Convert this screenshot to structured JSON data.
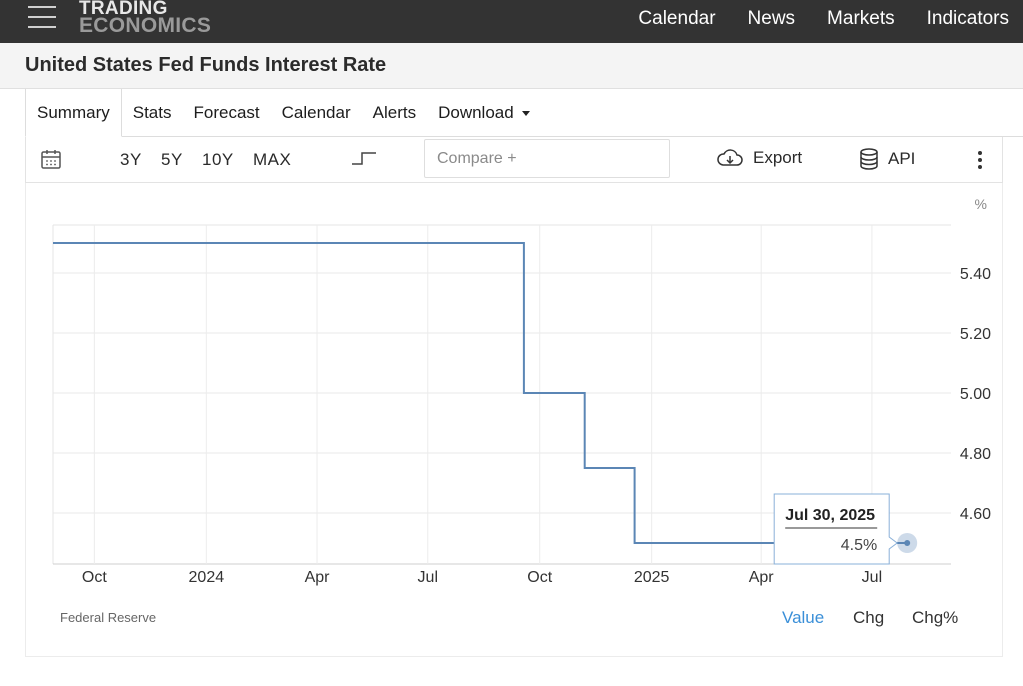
{
  "nav": {
    "logo_line1": "TRADING",
    "logo_line2": "ECONOMICS",
    "links": [
      "Calendar",
      "News",
      "Markets",
      "Indicators"
    ]
  },
  "page_title": "United States Fed Funds Interest Rate",
  "tabs": [
    {
      "label": "Summary",
      "active": true
    },
    {
      "label": "Stats"
    },
    {
      "label": "Forecast"
    },
    {
      "label": "Calendar"
    },
    {
      "label": "Alerts"
    },
    {
      "label": "Download"
    }
  ],
  "toolbar": {
    "ranges": [
      "3Y",
      "5Y",
      "10Y",
      "MAX"
    ],
    "compare_placeholder": "Compare +",
    "export_label": "Export",
    "api_label": "API"
  },
  "chart_data": {
    "type": "line",
    "step": true,
    "unit_label": "%",
    "y_ticks": [
      "5.40",
      "5.20",
      "5.00",
      "4.80",
      "4.60"
    ],
    "y_tick_values": [
      5.4,
      5.2,
      5.0,
      4.8,
      4.6
    ],
    "ylim": [
      4.43,
      5.56
    ],
    "x_tick_labels": [
      "Oct",
      "2024",
      "Apr",
      "Jul",
      "Oct",
      "2025",
      "Apr",
      "Jul"
    ],
    "x_tick_dates": [
      "2023-10-01",
      "2024-01-01",
      "2024-04-01",
      "2024-07-01",
      "2024-10-01",
      "2025-01-01",
      "2025-04-01",
      "2025-07-01"
    ],
    "xlim": [
      "2023-08-28",
      "2025-09-04"
    ],
    "grid": true,
    "series": [
      {
        "color": "#5b86b5",
        "points": [
          {
            "x": "2023-08-28",
            "y": 5.5
          },
          {
            "x": "2024-09-18",
            "y": 5.5
          },
          {
            "x": "2024-09-18",
            "y": 5.0
          },
          {
            "x": "2024-11-07",
            "y": 5.0
          },
          {
            "x": "2024-11-07",
            "y": 4.75
          },
          {
            "x": "2024-12-18",
            "y": 4.75
          },
          {
            "x": "2024-12-18",
            "y": 4.5
          },
          {
            "x": "2025-07-30",
            "y": 4.5
          }
        ]
      }
    ],
    "tooltip": {
      "date": "Jul 30, 2025",
      "value": "4.5%"
    }
  },
  "source_label": "Federal Reserve",
  "value_tabs": [
    {
      "label": "Value",
      "active": true
    },
    {
      "label": "Chg"
    },
    {
      "label": "Chg%"
    }
  ]
}
